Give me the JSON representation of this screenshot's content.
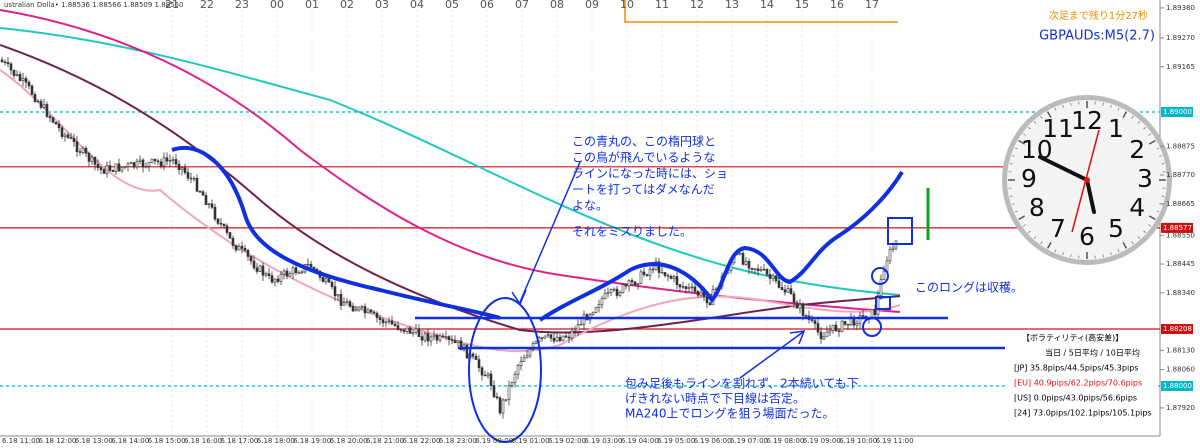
{
  "header": {
    "symbol_info": "ustralian Dolla• 1.88536 1.88566 1.88509 1.88550"
  },
  "top_hours": [
    "21",
    "22",
    "23",
    "00",
    "01",
    "02",
    "03",
    "04",
    "05",
    "06",
    "07",
    "08",
    "09",
    "10",
    "11",
    "12",
    "13",
    "14",
    "15",
    "16",
    "17"
  ],
  "countdown": "次足まで残り1分27秒",
  "symbol_label": "GBPAUDs:M5(2.7)",
  "price_axis": [
    {
      "value": 1.8938,
      "label": "1.89380"
    },
    {
      "value": 1.8927,
      "label": "1.89270"
    },
    {
      "value": 1.89165,
      "label": "1.89165"
    },
    {
      "value": 1.88875,
      "label": "1.88875"
    },
    {
      "value": 1.8877,
      "label": "1.88770"
    },
    {
      "value": 1.88665,
      "label": "1.88665"
    },
    {
      "value": 1.8855,
      "label": "1.88550"
    },
    {
      "value": 1.88445,
      "label": "1.88445"
    },
    {
      "value": 1.8834,
      "label": "1.88340"
    },
    {
      "value": 1.8813,
      "label": "1.88130"
    },
    {
      "value": 1.8806,
      "label": "1.88060"
    },
    {
      "value": 1.8792,
      "label": "1.87920"
    }
  ],
  "price_tags": [
    {
      "value": 1.89,
      "label": "1.89000",
      "color": "#00b8c8"
    },
    {
      "value": 1.88577,
      "label": "1.88577",
      "color": "#d01010"
    },
    {
      "value": 1.88208,
      "label": "1.88208",
      "color": "#d01010"
    },
    {
      "value": 1.88,
      "label": "1.88000",
      "color": "#00b8c8"
    }
  ],
  "levels": [
    {
      "value": 1.89,
      "color": "#00b8c8",
      "dashed": true
    },
    {
      "value": 1.888,
      "color": "#d01010",
      "dashed": false
    },
    {
      "value": 1.88577,
      "color": "#d01010",
      "dashed": false
    },
    {
      "value": 1.88208,
      "color": "#d01010",
      "dashed": false
    },
    {
      "value": 1.88,
      "color": "#00b8c8",
      "dashed": true
    }
  ],
  "bottom_times": [
    "6.18 11:00",
    "6.18 12:00",
    "6.18 13:00",
    "6.18 14:00",
    "6.18 15:00",
    "6.18 16:00",
    "6.18 17:00",
    "6.18 18:00",
    "6.18 19:00",
    "6.18 20:00",
    "6.18 21:00",
    "6.18 22:00",
    "6.18 23:00",
    "6.19 00:00",
    "6.19 01:00",
    "6.19 02:00",
    "6.19 03:00",
    "6.19 04:00",
    "6.19 05:00",
    "6.19 06:00",
    "6.19 07:00",
    "6.19 08:00",
    "6.19 09:00",
    "6.19 10:00",
    "6.19 11:00"
  ],
  "annotations": {
    "note_main": [
      "この青丸の、この楕円球と",
      "この鳥が飛んでいるような",
      "ラインになった時には、ショ",
      "ートを打ってはダメなんだ",
      "よな。",
      "それをミスりました。"
    ],
    "note_harvest": "このロングは収穫。",
    "note_bottom": [
      "包み足後もラインを割れず、2本続いても下",
      "げきれない時点で下目線は否定。",
      "MA240上でロングを狙う場面だった。"
    ]
  },
  "volatility": {
    "title": "【ボラティリティ(高安差)】",
    "header": "当日 / 5日平均 / 10日平均",
    "rows": [
      {
        "text": "[JP] 35.8pips/44.5pips/45.3pips",
        "color": "#000000"
      },
      {
        "text": "[EU] 40.9pips/62.2pips/70.6pips",
        "color": "#e01010"
      },
      {
        "text": "[US]  0.0pips/43.0pips/56.6pips",
        "color": "#000000"
      },
      {
        "text": "[24] 73.0pips/102.1pips/105.1pips",
        "color": "#000000"
      }
    ]
  },
  "clock": {
    "numbers": [
      "1",
      "2",
      "3",
      "4",
      "5",
      "6",
      "7",
      "8",
      "9",
      "10",
      "11",
      "12"
    ]
  }
}
